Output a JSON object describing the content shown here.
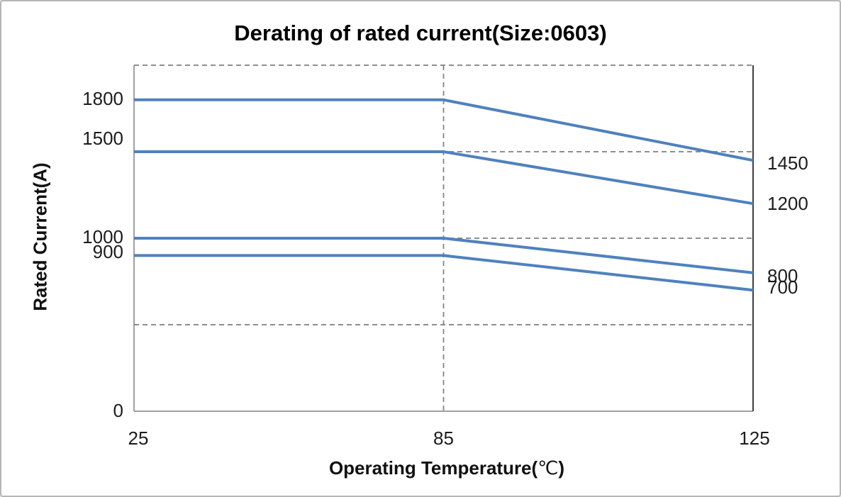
{
  "window": {
    "background": "#ffffff",
    "border_color": "#b6b6b6"
  },
  "chart": {
    "title": "Derating of rated current(Size:0603)",
    "y_axis_title": "Rated Current(A)",
    "x_axis_title_prefix": "Operating Temperature(",
    "x_axis_title_unit": "℃",
    "x_axis_title_suffix": ")"
  },
  "chart_data": {
    "type": "line",
    "title": "Derating of rated current(Size:0603)",
    "xlabel": "Operating Temperature(℃)",
    "ylabel": "Rated Current(A)",
    "x": [
      25,
      85,
      125
    ],
    "x_tick_labels": [
      "25",
      "85",
      "125"
    ],
    "x_spacing": "even",
    "ylim": [
      0,
      2000
    ],
    "y_axis_zero_label": "0",
    "y_gridlines": [
      500,
      1000,
      1500,
      2000
    ],
    "grid_style": "dashed",
    "x_reference_line": 85,
    "legend": "none",
    "series": [
      {
        "start_label": "1800",
        "end_label": "1450",
        "values": [
          1800,
          1800,
          1450
        ]
      },
      {
        "start_label": "1500",
        "end_label": "1200",
        "values": [
          1500,
          1500,
          1200
        ]
      },
      {
        "start_label": "1000",
        "end_label": "800",
        "values": [
          1000,
          1000,
          800
        ]
      },
      {
        "start_label": "900",
        "end_label": "700",
        "values": [
          900,
          900,
          700
        ]
      }
    ],
    "colors": {
      "line": "#4f81bd",
      "gridline": "#7f7f7f",
      "axis": "#808080",
      "right_border": "#3f3f3f",
      "text": "#1c1c1c"
    }
  }
}
